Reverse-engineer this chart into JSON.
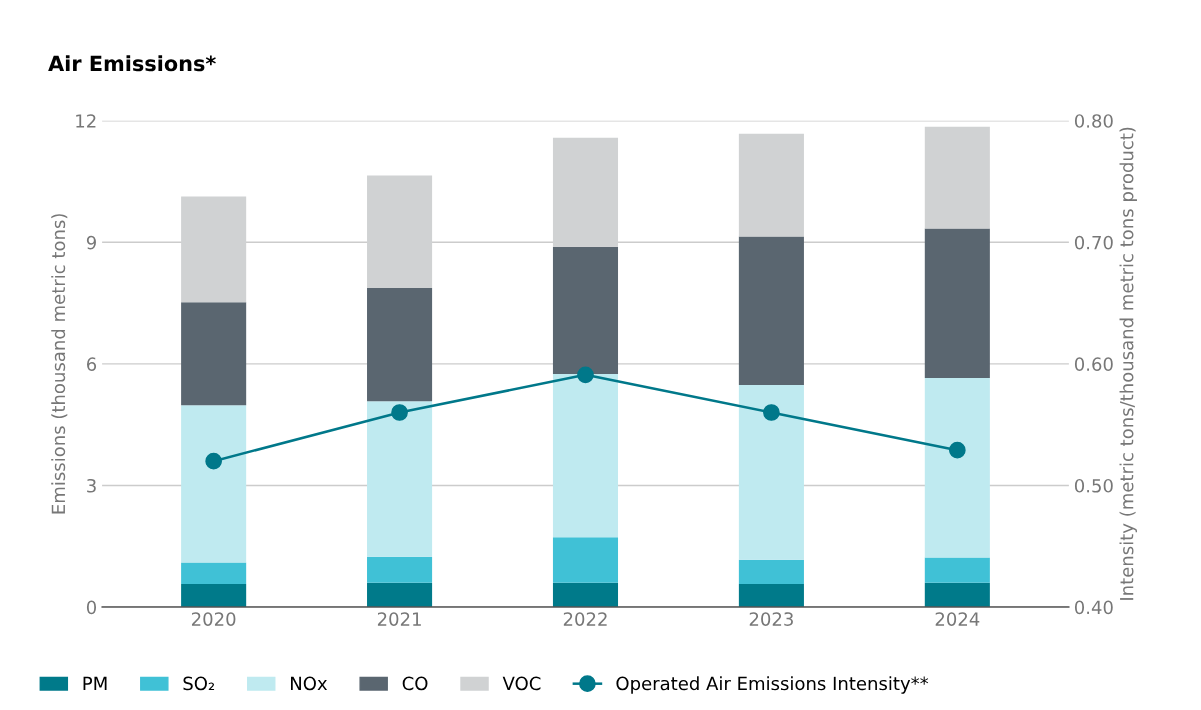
{
  "chart_data": {
    "type": "bar",
    "title": "Air Emissions*",
    "ylabel": "Emissions (thousand metric tons)",
    "y2label": "Intensity (metric tons/thousand metric tons product)",
    "categories": [
      "2020",
      "2021",
      "2022",
      "2023",
      "2024"
    ],
    "stacked": true,
    "series": [
      {
        "name": "PM",
        "color": "#007a8a",
        "values": [
          0.57,
          0.6,
          0.6,
          0.57,
          0.6
        ]
      },
      {
        "name": "SO₂",
        "color": "#40c1d6",
        "values": [
          0.53,
          0.64,
          1.12,
          0.6,
          0.62
        ]
      },
      {
        "name": "NOx",
        "color": "#bfeaf0",
        "values": [
          3.88,
          3.84,
          4.03,
          4.31,
          4.43
        ]
      },
      {
        "name": "CO",
        "color": "#5a6670",
        "values": [
          2.54,
          2.79,
          3.14,
          3.66,
          3.69
        ]
      },
      {
        "name": "VOC",
        "color": "#d0d2d3",
        "values": [
          2.61,
          2.78,
          2.69,
          2.54,
          2.51
        ]
      },
      {
        "name": "Operated Air Emissions Intensity**",
        "type": "line",
        "axis": "y2",
        "color": "#00788a",
        "marker": "circle",
        "values": [
          0.52,
          0.56,
          0.591,
          0.56,
          0.529
        ]
      }
    ],
    "ylim": [
      0,
      12
    ],
    "yticks": [
      0,
      3,
      6,
      9,
      12
    ],
    "y2lim": [
      0.4,
      0.8
    ],
    "y2ticks": [
      {
        "value": 0.4,
        "label": "0.40"
      },
      {
        "value": 0.5,
        "label": "0.50"
      },
      {
        "value": 0.6,
        "label": "0.60"
      },
      {
        "value": 0.7,
        "label": "0.70"
      },
      {
        "value": 0.8,
        "label": "0.80"
      }
    ],
    "grid": "y",
    "legend": "bottom"
  }
}
